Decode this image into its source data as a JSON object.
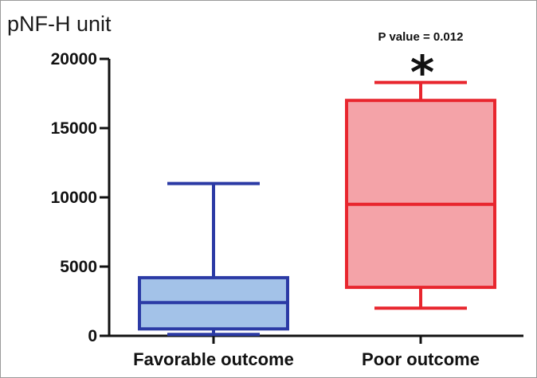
{
  "chart_data": {
    "type": "box",
    "ylabel": "pNF-H unit",
    "ylim": [
      0,
      20000
    ],
    "yticks": [
      0,
      5000,
      10000,
      15000,
      20000
    ],
    "yticklabels": [
      "0",
      "5000",
      "10000",
      "15000",
      "20000"
    ],
    "categories": [
      "Favorable outcome",
      "Poor outcome"
    ],
    "boxes": [
      {
        "category": "Favorable outcome",
        "min": 100,
        "q1": 500,
        "median": 2400,
        "q3": 4200,
        "max": 11000,
        "fill": "#a3c2e8",
        "stroke": "#2b3aa5"
      },
      {
        "category": "Poor outcome",
        "min": 2000,
        "q1": 3500,
        "median": 9500,
        "q3": 17000,
        "max": 18300,
        "fill": "#f4a3a8",
        "stroke": "#e8262e"
      }
    ],
    "annotation": {
      "text": "P value = 0.012",
      "marker": "*",
      "over_category": "Poor outcome"
    },
    "grid": false,
    "legend": "none"
  }
}
